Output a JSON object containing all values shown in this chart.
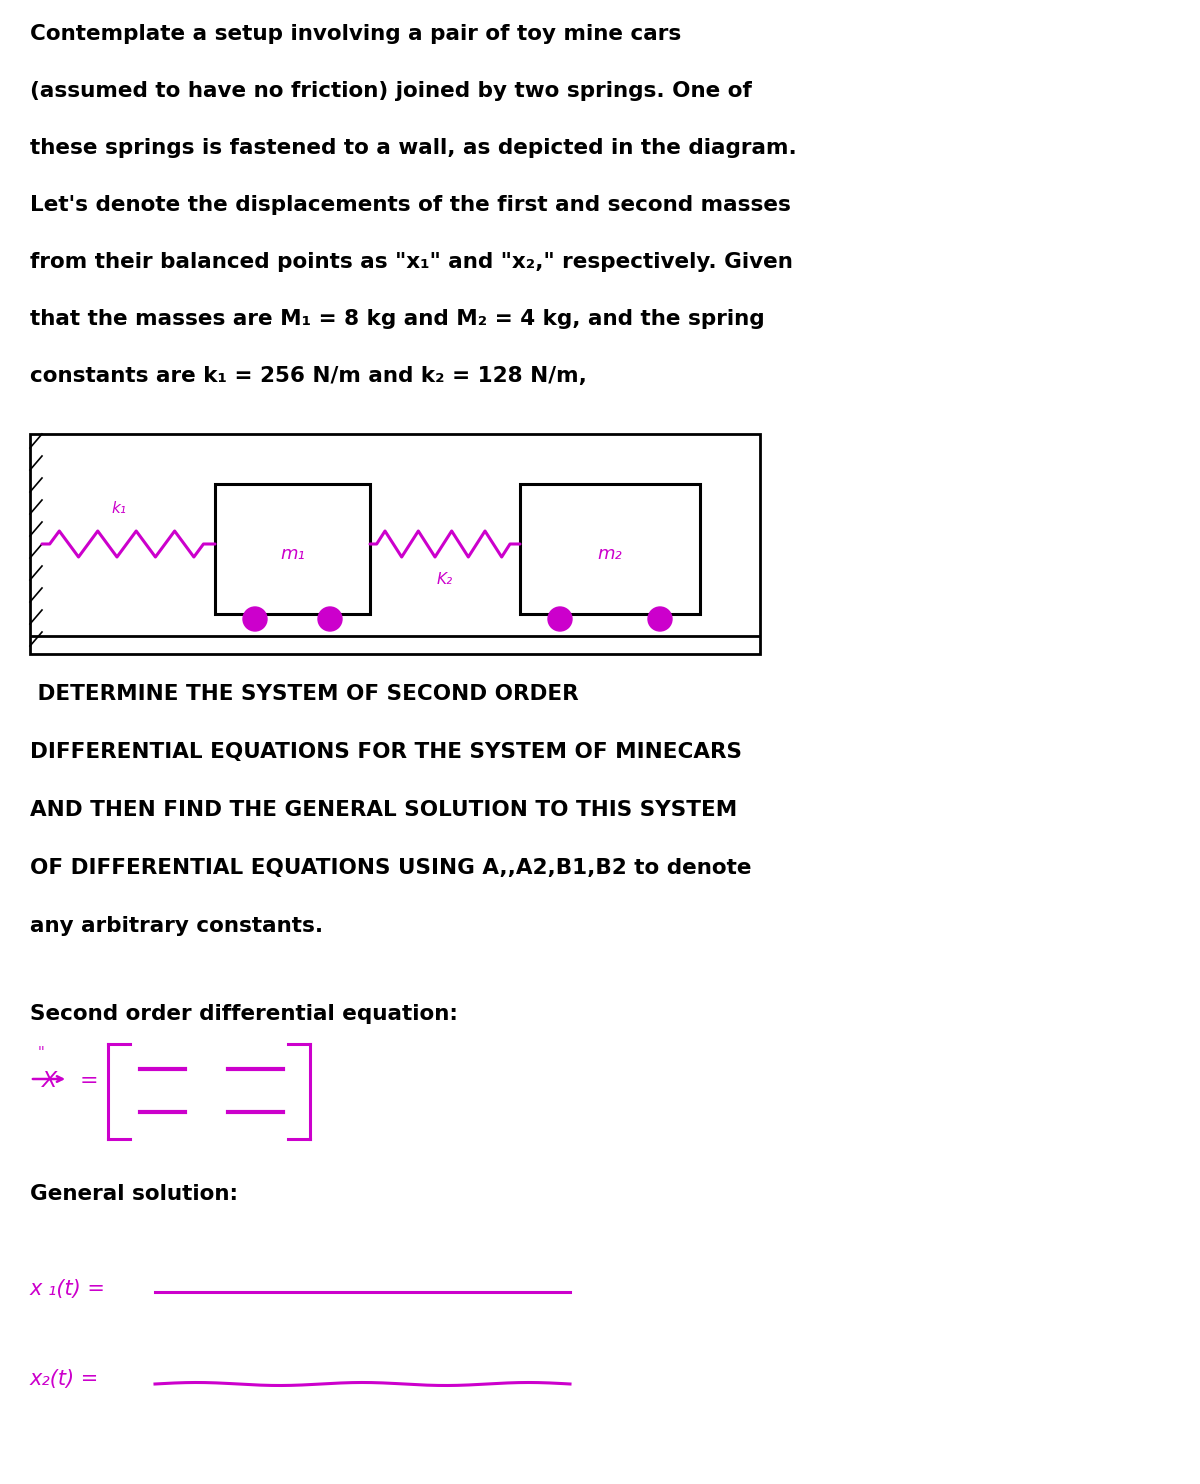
{
  "background_color": "#ffffff",
  "handwriting_color": "#cc00cc",
  "text_color": "#000000",
  "intro_lines": [
    "Contemplate a setup involving a pair of toy mine cars",
    "(assumed to have no friction) joined by two springs. One of",
    "these springs is fastened to a wall, as depicted in the diagram.",
    "Let's denote the displacements of the first and second masses",
    "from their balanced points as \"x₁\" and \"x₂,\" respectively. Given",
    "that the masses are M₁ = 8 kg and M₂ = 4 kg, and the spring",
    "constants are k₁ = 256 N/m and k₂ = 128 N/m,"
  ],
  "problem_lines": [
    " DETERMINE THE SYSTEM OF SECOND ORDER",
    "DIFFERENTIAL EQUATIONS FOR THE SYSTEM OF MINECARS",
    "AND THEN FIND THE GENERAL SOLUTION TO THIS SYSTEM",
    "OF DIFFERENTIAL EQUATIONS USING A,,A2,B1,B2 to denote",
    "any arbitrary constants."
  ],
  "second_order_label": "Second order differential equation:",
  "general_solution_label": "General solution:",
  "x1_label": "x ₁(t) =",
  "x2_label": "x₂(t) ="
}
